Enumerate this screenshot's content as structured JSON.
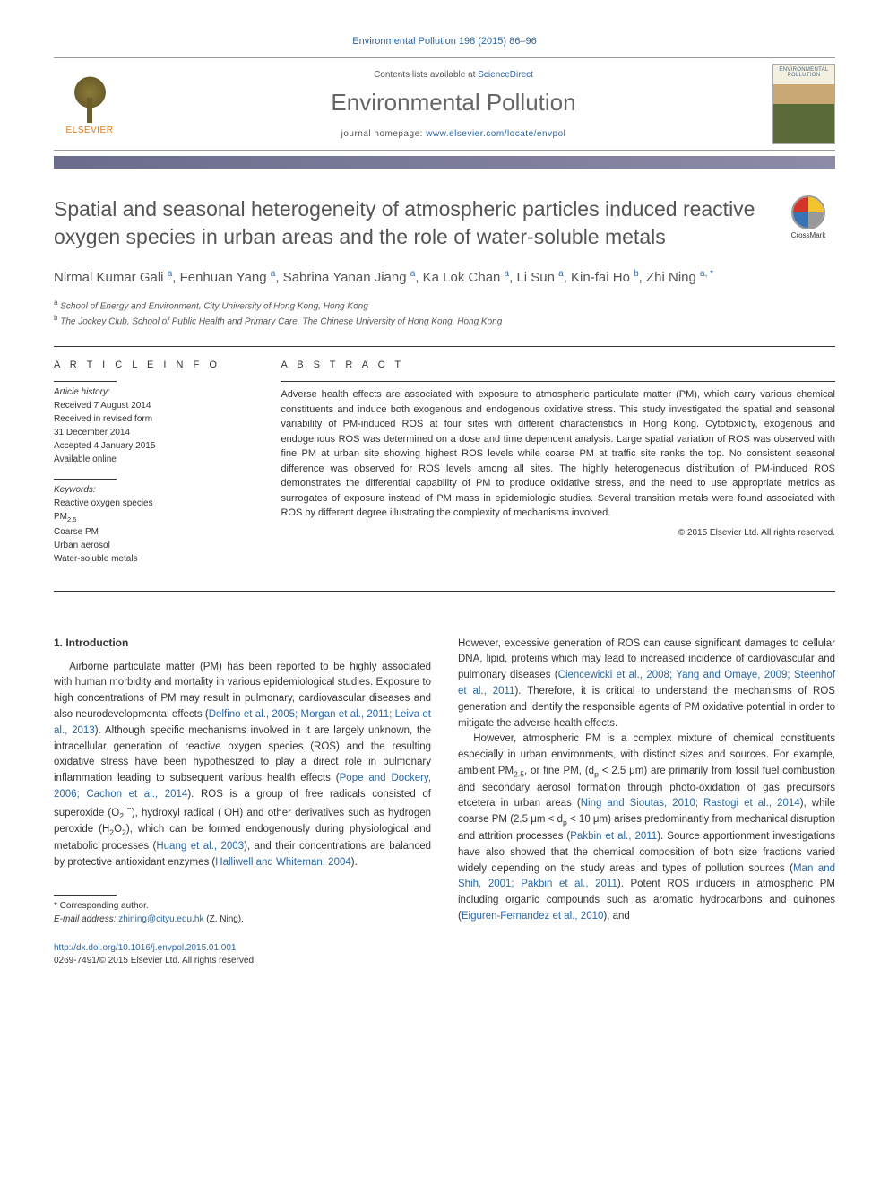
{
  "banner": "Environmental Pollution 198 (2015) 86–96",
  "header": {
    "contents_prefix": "Contents lists available at ",
    "contents_link": "ScienceDirect",
    "journal_name": "Environmental Pollution",
    "homepage_prefix": "journal homepage: ",
    "homepage_link": "www.elsevier.com/locate/envpol",
    "publisher": "ELSEVIER",
    "cover_label": "ENVIRONMENTAL POLLUTION"
  },
  "crossmark": "CrossMark",
  "article": {
    "title": "Spatial and seasonal heterogeneity of atmospheric particles induced reactive oxygen species in urban areas and the role of water-soluble metals",
    "authors_html": "Nirmal Kumar Gali <sup>a</sup>, Fenhuan Yang <sup>a</sup>, Sabrina Yanan Jiang <sup>a</sup>, Ka Lok Chan <sup>a</sup>, Li Sun <sup>a</sup>, Kin-fai Ho <sup>b</sup>, Zhi Ning <sup>a, *</sup>",
    "affiliations": [
      {
        "sup": "a",
        "text": "School of Energy and Environment, City University of Hong Kong, Hong Kong"
      },
      {
        "sup": "b",
        "text": "The Jockey Club, School of Public Health and Primary Care, The Chinese University of Hong Kong, Hong Kong"
      }
    ]
  },
  "info": {
    "heading": "A R T I C L E   I N F O",
    "history_label": "Article history:",
    "history": [
      "Received 7 August 2014",
      "Received in revised form",
      "31 December 2014",
      "Accepted 4 January 2015",
      "Available online"
    ],
    "keywords_label": "Keywords:",
    "keywords": [
      "Reactive oxygen species",
      "PM2.5",
      "Coarse PM",
      "Urban aerosol",
      "Water-soluble metals"
    ]
  },
  "abstract": {
    "heading": "A B S T R A C T",
    "text": "Adverse health effects are associated with exposure to atmospheric particulate matter (PM), which carry various chemical constituents and induce both exogenous and endogenous oxidative stress. This study investigated the spatial and seasonal variability of PM-induced ROS at four sites with different characteristics in Hong Kong. Cytotoxicity, exogenous and endogenous ROS was determined on a dose and time dependent analysis. Large spatial variation of ROS was observed with fine PM at urban site showing highest ROS levels while coarse PM at traffic site ranks the top. No consistent seasonal difference was observed for ROS levels among all sites. The highly heterogeneous distribution of PM-induced ROS demonstrates the differential capability of PM to produce oxidative stress, and the need to use appropriate metrics as surrogates of exposure instead of PM mass in epidemiologic studies. Several transition metals were found associated with ROS by different degree illustrating the complexity of mechanisms involved.",
    "copyright": "© 2015 Elsevier Ltd. All rights reserved."
  },
  "section1": {
    "heading": "1. Introduction"
  },
  "body": {
    "col1_p1": "Airborne particulate matter (PM) has been reported to be highly associated with human morbidity and mortality in various epidemiological studies. Exposure to high concentrations of PM may result in pulmonary, cardiovascular diseases and also neurodevelopmental effects (<span class='cite'>Delfino et al., 2005; Morgan et al., 2011; Leiva et al., 2013</span>). Although specific mechanisms involved in it are largely unknown, the intracellular generation of reactive oxygen species (ROS) and the resulting oxidative stress have been hypothesized to play a direct role in pulmonary inflammation leading to subsequent various health effects (<span class='cite'>Pope and Dockery, 2006; Cachon et al., 2014</span>). ROS is a group of free radicals consisted of superoxide (O<sub>2</sub><sup>·−</sup>), hydroxyl radical (<sup>·</sup>OH) and other derivatives such as hydrogen peroxide (H<sub>2</sub>O<sub>2</sub>), which can be formed endogenously during physiological and metabolic processes (<span class='cite'>Huang et al., 2003</span>), and their concentrations are balanced by protective antioxidant enzymes (<span class='cite'>Halliwell and Whiteman, 2004</span>).",
    "col2_p1": "However, excessive generation of ROS can cause significant damages to cellular DNA, lipid, proteins which may lead to increased incidence of cardiovascular and pulmonary diseases (<span class='cite'>Ciencewicki et al., 2008; Yang and Omaye, 2009; Steenhof et al., 2011</span>). Therefore, it is critical to understand the mechanisms of ROS generation and identify the responsible agents of PM oxidative potential in order to mitigate the adverse health effects.",
    "col2_p2": "However, atmospheric PM is a complex mixture of chemical constituents especially in urban environments, with distinct sizes and sources. For example, ambient PM<sub>2.5</sub>, or fine PM, (d<sub>p</sub> < 2.5 μm) are primarily from fossil fuel combustion and secondary aerosol formation through photo-oxidation of gas precursors etcetera in urban areas (<span class='cite'>Ning and Sioutas, 2010; Rastogi et al., 2014</span>), while coarse PM (2.5 μm < d<sub>p</sub> < 10 μm) arises predominantly from mechanical disruption and attrition processes (<span class='cite'>Pakbin et al., 2011</span>). Source apportionment investigations have also showed that the chemical composition of both size fractions varied widely depending on the study areas and types of pollution sources (<span class='cite'>Man and Shih, 2001; Pakbin et al., 2011</span>). Potent ROS inducers in atmospheric PM including organic compounds such as aromatic hydrocarbons and quinones (<span class='cite'>Eiguren-Fernandez et al., 2010</span>), and"
  },
  "footnote": {
    "corresponding": "* Corresponding author.",
    "email_label": "E-mail address:",
    "email": "zhining@cityu.edu.hk",
    "email_suffix": "(Z. Ning)."
  },
  "doi": {
    "link": "http://dx.doi.org/10.1016/j.envpol.2015.01.001",
    "issn_line": "0269-7491/© 2015 Elsevier Ltd. All rights reserved."
  },
  "colors": {
    "link": "#2966a3",
    "text": "#333333",
    "journal_name": "#666666",
    "gradbar_start": "#6b6b8c",
    "gradbar_end": "#8c8ca8",
    "elsevier_orange": "#e67817"
  }
}
